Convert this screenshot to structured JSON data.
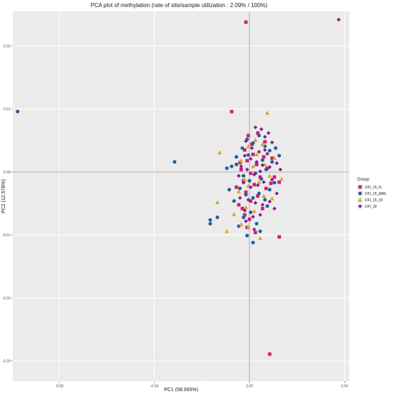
{
  "chart_data": {
    "type": "scatter",
    "title": "PCA plot of methylation (rate of site/sample utilization : 2.09% / 100%)",
    "xlabel": "PC1 (58.065%)",
    "ylabel": "PC2 (12.578%)",
    "xlim": [
      -0.0995,
      0.042
    ],
    "ylim": [
      -0.0332,
      0.0255
    ],
    "x_ticks": [
      {
        "value": -0.08,
        "label": "-0.08"
      },
      {
        "value": -0.04,
        "label": "-0.04"
      },
      {
        "value": 0.0,
        "label": "0.00"
      },
      {
        "value": 0.04,
        "label": "0.04"
      }
    ],
    "y_ticks": [
      {
        "value": 0.02,
        "label": "0.02"
      },
      {
        "value": 0.01,
        "label": "0.01"
      },
      {
        "value": 0.0,
        "label": "0.00"
      },
      {
        "value": -0.01,
        "label": "-0.01"
      },
      {
        "value": -0.02,
        "label": "-0.02"
      },
      {
        "value": -0.03,
        "label": "-0.03"
      }
    ],
    "grid": true,
    "reference_lines": {
      "x": 0,
      "y": 0
    },
    "legend": {
      "title": "Group",
      "placement": "right"
    },
    "series": [
      {
        "name": "DFI_15_N",
        "color": "#cc1f78",
        "shape": "square",
        "points": [
          [
            -0.0015,
            0.0238
          ],
          [
            -0.0075,
            0.0096
          ],
          [
            0.0125,
            -0.0103
          ],
          [
            0.0085,
            -0.0289
          ],
          [
            -0.0005,
            0.0058
          ],
          [
            0.0035,
            0.0062
          ],
          [
            0.0065,
            0.0048
          ],
          [
            -0.002,
            0.0035
          ],
          [
            0.0015,
            0.0028
          ],
          [
            0.006,
            0.0024
          ],
          [
            -0.001,
            0.0018
          ],
          [
            0.003,
            0.0012
          ],
          [
            0.0075,
            0.0006
          ],
          [
            -0.0035,
            0.0004
          ],
          [
            0.0005,
            -0.0002
          ],
          [
            0.0045,
            -0.0008
          ],
          [
            -0.0025,
            -0.0014
          ],
          [
            0.002,
            -0.002
          ],
          [
            0.007,
            -0.0026
          ],
          [
            -0.0015,
            -0.0032
          ],
          [
            0.0035,
            -0.0038
          ],
          [
            -0.0045,
            -0.0052
          ],
          [
            0.0005,
            -0.0046
          ],
          [
            -0.002,
            -0.0068
          ],
          [
            0.009,
            -0.0018
          ],
          [
            -0.0055,
            -0.0024
          ],
          [
            0.0055,
            -0.0058
          ],
          [
            0.0,
            -0.0075
          ],
          [
            -0.001,
            -0.0088
          ],
          [
            0.0025,
            -0.0096
          ],
          [
            0.0105,
            -0.0008
          ],
          [
            0.0095,
            0.0022
          ],
          [
            -0.004,
            0.0015
          ],
          [
            0.001,
            0.0044
          ],
          [
            0.0125,
            -0.0016
          ],
          [
            -0.003,
            -0.0058
          ]
        ]
      },
      {
        "name": "DFI_15_ABN",
        "color": "#1f5f9a",
        "shape": "circle",
        "points": [
          [
            -0.0975,
            0.0096
          ],
          [
            -0.0315,
            0.0016
          ],
          [
            -0.0165,
            -0.0076
          ],
          [
            -0.0165,
            -0.0082
          ],
          [
            -0.0135,
            -0.0072
          ],
          [
            -0.0045,
            -0.0086
          ],
          [
            -0.0085,
            -0.0028
          ],
          [
            -0.0095,
            0.0006
          ],
          [
            -0.0075,
            0.0009
          ],
          [
            -0.0055,
            0.0024
          ],
          [
            -0.003,
            0.0038
          ],
          [
            -0.001,
            0.0052
          ],
          [
            0.0015,
            0.0046
          ],
          [
            0.004,
            0.0058
          ],
          [
            0.0065,
            0.0041
          ],
          [
            0.0085,
            0.0034
          ],
          [
            0.011,
            0.0038
          ],
          [
            0.0095,
            0.0016
          ],
          [
            0.007,
            0.0004
          ],
          [
            0.005,
            -0.0011
          ],
          [
            0.0025,
            -0.0002
          ],
          [
            0.0,
            -0.0014
          ],
          [
            -0.0025,
            -0.0006
          ],
          [
            -0.004,
            -0.0026
          ],
          [
            -0.0015,
            -0.0036
          ],
          [
            0.0015,
            -0.0041
          ],
          [
            0.004,
            -0.0034
          ],
          [
            0.0065,
            -0.0044
          ],
          [
            0.0085,
            -0.0028
          ],
          [
            0.0105,
            -0.0017
          ],
          [
            -0.0025,
            -0.0072
          ],
          [
            0.0005,
            -0.0064
          ],
          [
            0.003,
            -0.0082
          ],
          [
            -0.001,
            -0.0101
          ],
          [
            0.0015,
            -0.0112
          ],
          [
            0.0045,
            -0.0094
          ],
          [
            -0.0055,
            0.0012
          ],
          [
            0.0125,
            0.0026
          ],
          [
            0.0055,
            0.0019
          ],
          [
            -0.0005,
            0.0027
          ],
          [
            0.0075,
            -0.0054
          ],
          [
            -0.0065,
            -0.0046
          ]
        ]
      },
      {
        "name": "DFI_15_30",
        "color": "#e5a121",
        "shape": "triangle",
        "points": [
          [
            0.0075,
            0.0094
          ],
          [
            -0.0125,
            0.0031
          ],
          [
            -0.0135,
            -0.0048
          ],
          [
            -0.0095,
            -0.0094
          ],
          [
            -0.0035,
            -0.0083
          ],
          [
            -0.0005,
            -0.0087
          ],
          [
            -0.0005,
            0.0041
          ],
          [
            0.0025,
            0.0051
          ],
          [
            0.0055,
            0.0044
          ],
          [
            0.0105,
            0.0022
          ],
          [
            0.0085,
            -0.0006
          ],
          [
            0.004,
            -0.0016
          ],
          [
            0.0015,
            0.0009
          ],
          [
            -0.002,
            -0.0012
          ],
          [
            -0.0045,
            -0.0031
          ],
          [
            -0.0015,
            -0.0056
          ],
          [
            0.002,
            -0.0062
          ],
          [
            0.006,
            -0.0038
          ],
          [
            0.0095,
            -0.0042
          ],
          [
            0.0135,
            -0.0011
          ],
          [
            -0.0005,
            -0.0022
          ],
          [
            0.003,
            0.0028
          ],
          [
            -0.0035,
            0.0018
          ],
          [
            0.0065,
            0.0012
          ],
          [
            -0.0065,
            -0.0067
          ],
          [
            0.0045,
            -0.0105
          ]
        ]
      },
      {
        "name": "DFI_30",
        "color": "#8c1a94",
        "shape": "diamond",
        "points": [
          [
            0.0375,
            0.0242
          ],
          [
            0.0025,
            0.0071
          ],
          [
            0.005,
            0.0068
          ],
          [
            0.008,
            0.0062
          ],
          [
            -0.0015,
            0.0049
          ],
          [
            0.0065,
            0.0056
          ],
          [
            0.0095,
            0.0047
          ],
          [
            0.001,
            0.0038
          ],
          [
            0.004,
            0.0032
          ],
          [
            0.0075,
            0.0029
          ],
          [
            -0.002,
            0.0026
          ],
          [
            0.0005,
            0.0021
          ],
          [
            0.003,
            0.0016
          ],
          [
            0.0055,
            0.0011
          ],
          [
            0.0085,
            0.0008
          ],
          [
            -0.0035,
            0.0009
          ],
          [
            -0.001,
            0.0004
          ],
          [
            0.002,
            -0.0004
          ],
          [
            0.0045,
            0.0001
          ],
          [
            0.0115,
            0.0014
          ],
          [
            -0.0025,
            -0.0017
          ],
          [
            0.0005,
            -0.0024
          ],
          [
            0.0035,
            -0.0021
          ],
          [
            0.006,
            -0.0016
          ],
          [
            0.0095,
            -0.0012
          ],
          [
            -0.004,
            -0.0041
          ],
          [
            -0.0005,
            -0.0044
          ],
          [
            0.0025,
            -0.0049
          ],
          [
            0.0055,
            -0.0052
          ],
          [
            0.0085,
            -0.0047
          ],
          [
            -0.002,
            -0.0061
          ],
          [
            0.0015,
            -0.0071
          ],
          [
            0.0045,
            -0.0068
          ],
          [
            -0.0015,
            -0.0078
          ],
          [
            0.002,
            -0.0091
          ],
          [
            0.0115,
            -0.0034
          ],
          [
            0.013,
            0.0004
          ],
          [
            0.0105,
            -0.0058
          ],
          [
            -0.0045,
            -0.0006
          ],
          [
            0.0065,
            0.0035
          ]
        ]
      }
    ]
  }
}
